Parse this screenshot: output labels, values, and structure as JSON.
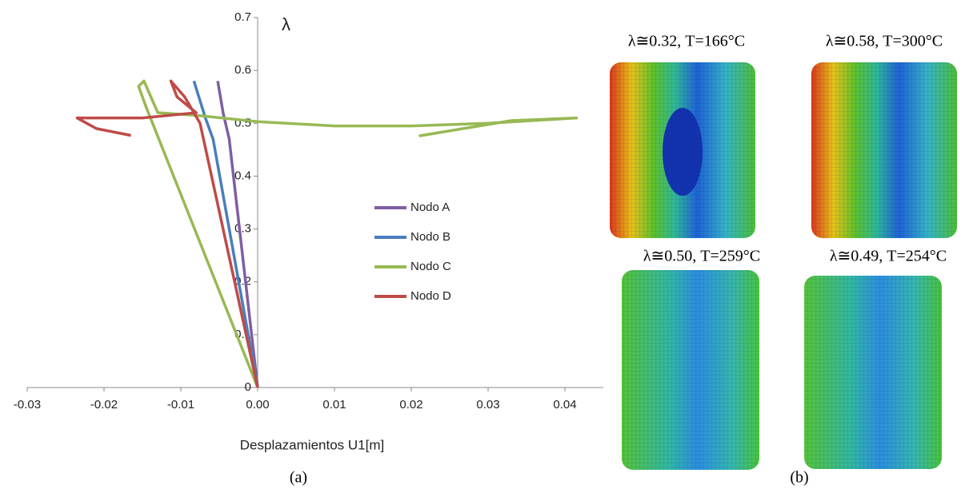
{
  "chart_data": {
    "type": "line",
    "x_label": "Desplazamientos U1[m]",
    "y_label": "λ",
    "xlim": [
      -0.03,
      0.045
    ],
    "ylim": [
      0,
      0.7
    ],
    "xticks": [
      -0.03,
      -0.02,
      -0.01,
      {
        "value": 0,
        "label": "0.00"
      },
      0.01,
      0.02,
      0.03,
      0.04
    ],
    "yticks": [
      0,
      0.1,
      0.2,
      0.3,
      0.4,
      0.5,
      0.6,
      0.7
    ],
    "legend": "right",
    "series": [
      {
        "name": "Nodo A",
        "color": "#7e5fa3",
        "x": [
          0,
          -0.0037,
          -0.0045,
          -0.0052
        ],
        "values": [
          0,
          0.47,
          0.52,
          0.58
        ]
      },
      {
        "name": "Nodo B",
        "color": "#4a7ebb",
        "x": [
          0,
          -0.0058,
          -0.0068,
          -0.0083
        ],
        "values": [
          0,
          0.47,
          0.51,
          0.58
        ]
      },
      {
        "name": "Nodo C",
        "color": "#98b954",
        "x": [
          0,
          -0.0145,
          -0.0155,
          -0.0148,
          -0.013,
          -0.008,
          0,
          0.01,
          0.02,
          0.03,
          0.0415,
          0.033,
          0.021
        ],
        "values": [
          0,
          0.53,
          0.57,
          0.58,
          0.52,
          0.515,
          0.503,
          0.495,
          0.495,
          0.5,
          0.51,
          0.505,
          0.476
        ]
      },
      {
        "name": "Nodo D",
        "color": "#be4b48",
        "x": [
          0,
          -0.0075,
          -0.0095,
          -0.0113,
          -0.0105,
          -0.008,
          -0.015,
          -0.0235,
          -0.021,
          -0.0165
        ],
        "values": [
          0,
          0.5,
          0.55,
          0.58,
          0.55,
          0.52,
          0.51,
          0.51,
          0.49,
          0.477
        ]
      }
    ]
  },
  "figure": {
    "caption_a": "(a)",
    "caption_b": "(b)",
    "images": [
      {
        "label": "λ≅0.32, T=166°C"
      },
      {
        "label": "λ≅0.58, T=300°C"
      },
      {
        "label": "λ≅0.50, T=259°C"
      },
      {
        "label": "λ≅0.49, T=254°C"
      }
    ]
  }
}
